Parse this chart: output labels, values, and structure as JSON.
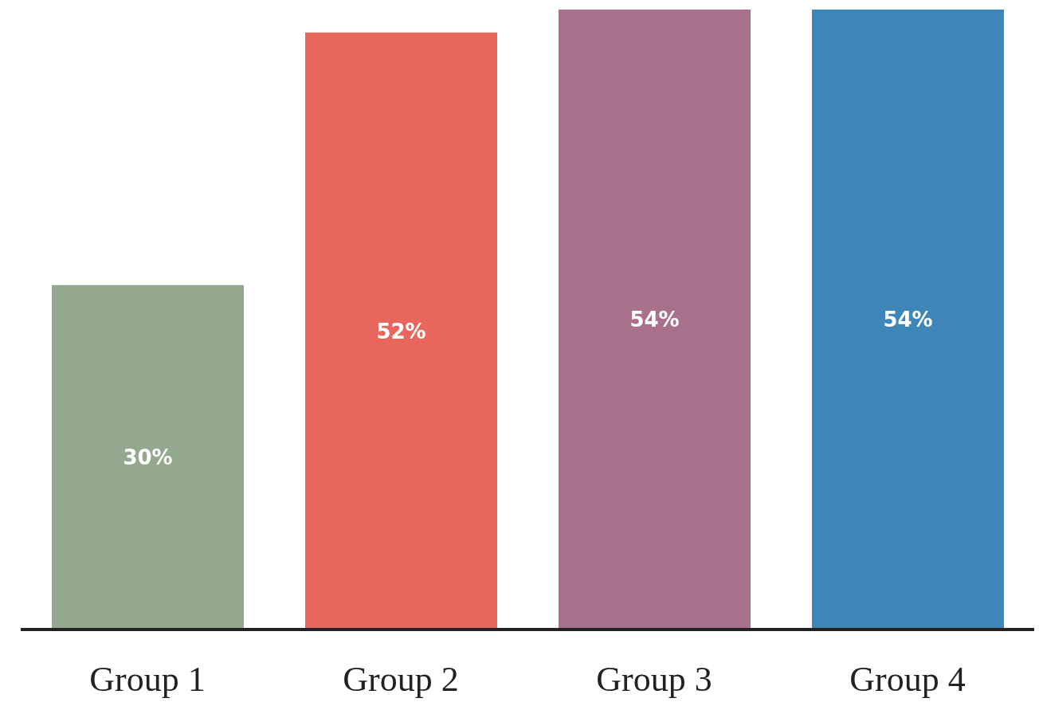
{
  "chart_data": {
    "type": "bar",
    "categories": [
      "Group 1",
      "Group 2",
      "Group 3",
      "Group 4"
    ],
    "values": [
      30,
      52,
      54,
      54
    ],
    "colors": [
      "#93a88e",
      "#e8665c",
      "#a8708a",
      "#3f86b8"
    ],
    "value_labels": [
      "30%",
      "52%",
      "54%",
      "54%"
    ],
    "grid": false,
    "legend": false
  }
}
